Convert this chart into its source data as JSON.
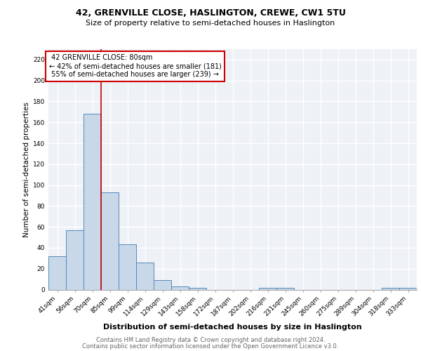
{
  "title_line1": "42, GRENVILLE CLOSE, HASLINGTON, CREWE, CW1 5TU",
  "title_line2": "Size of property relative to semi-detached houses in Haslington",
  "xlabel": "Distribution of semi-detached houses by size in Haslington",
  "ylabel": "Number of semi-detached properties",
  "footer_line1": "Contains HM Land Registry data © Crown copyright and database right 2024.",
  "footer_line2": "Contains public sector information licensed under the Open Government Licence v3.0.",
  "categories": [
    "41sqm",
    "56sqm",
    "70sqm",
    "85sqm",
    "99sqm",
    "114sqm",
    "129sqm",
    "143sqm",
    "158sqm",
    "172sqm",
    "187sqm",
    "202sqm",
    "216sqm",
    "231sqm",
    "245sqm",
    "260sqm",
    "275sqm",
    "289sqm",
    "304sqm",
    "318sqm",
    "333sqm"
  ],
  "values": [
    32,
    57,
    168,
    93,
    43,
    26,
    9,
    3,
    2,
    0,
    0,
    0,
    2,
    2,
    0,
    0,
    0,
    0,
    0,
    2,
    2
  ],
  "bar_color": "#c8d8e8",
  "bar_edge_color": "#5588bb",
  "bar_linewidth": 0.7,
  "property_label": "42 GRENVILLE CLOSE: 80sqm",
  "vline_x": 2.5,
  "smaller_pct": 42,
  "smaller_count": 181,
  "larger_pct": 55,
  "larger_count": 239,
  "annotation_box_color": "#ffffff",
  "annotation_box_edge": "#cc0000",
  "vline_color": "#cc0000",
  "ylim": [
    0,
    230
  ],
  "yticks": [
    0,
    20,
    40,
    60,
    80,
    100,
    120,
    140,
    160,
    180,
    200,
    220
  ],
  "bg_color": "#eef2f7",
  "grid_color": "#ffffff",
  "title1_fontsize": 9,
  "title2_fontsize": 8,
  "ylabel_fontsize": 7.5,
  "xlabel_fontsize": 8,
  "tick_fontsize": 6.5,
  "ann_fontsize": 7,
  "footer_fontsize": 6
}
